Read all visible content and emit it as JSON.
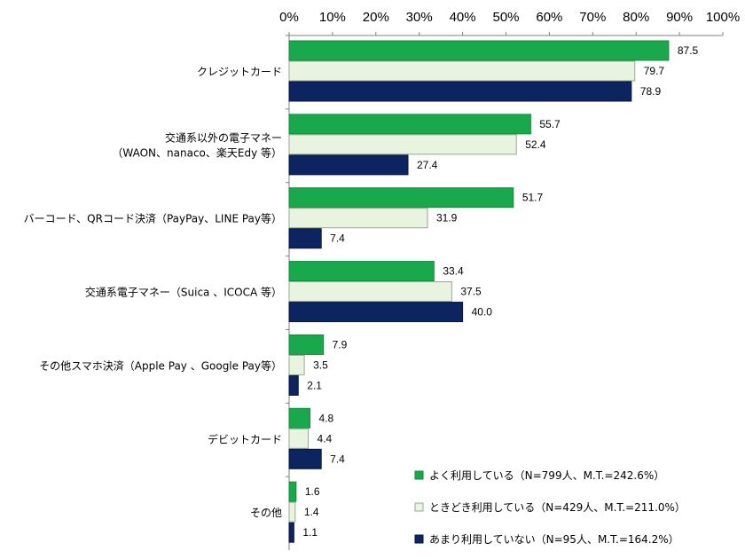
{
  "chart_data": {
    "type": "bar",
    "orientation": "horizontal",
    "xlim": [
      0,
      100
    ],
    "x_ticks": [
      "0%",
      "10%",
      "20%",
      "30%",
      "40%",
      "50%",
      "60%",
      "70%",
      "80%",
      "90%",
      "100%"
    ],
    "tick_position": "top",
    "grid": false,
    "legend_position": "bottom-right",
    "categories": [
      [
        "クレジットカード"
      ],
      [
        "交通系以外の電子マネー",
        "（WAON、nanaco、楽天Edy 等）"
      ],
      [
        "バーコード、QRコード決済（PayPay、LINE Pay等）"
      ],
      [
        "交通系電子マネー（Suica 、ICOCA 等）"
      ],
      [
        "その他スマホ決済（Apple Pay 、Google Pay等）"
      ],
      [
        "デビットカード"
      ],
      [
        "その他"
      ]
    ],
    "series": [
      {
        "name": "よく利用している（N=799人、M.T.=242.6%）",
        "color": "#1aa84d",
        "values": [
          87.5,
          55.7,
          51.7,
          33.4,
          7.9,
          4.8,
          1.6
        ],
        "labels": [
          "87.5",
          "55.7",
          "51.7",
          "33.4",
          "7.9",
          "4.8",
          "1.6"
        ]
      },
      {
        "name": "ときどき利用している（N=429人、M.T.=211.0%）",
        "color": "#e8f3e0",
        "values": [
          79.7,
          52.4,
          31.9,
          37.5,
          3.5,
          4.4,
          1.4
        ],
        "labels": [
          "79.7",
          "52.4",
          "31.9",
          "37.5",
          "3.5",
          "4.4",
          "1.4"
        ]
      },
      {
        "name": "あまり利用していない（N=95人、M.T.=164.2%）",
        "color": "#0c2460",
        "values": [
          78.9,
          27.4,
          7.4,
          40.0,
          2.1,
          7.4,
          1.1
        ],
        "labels": [
          "78.9",
          "27.4",
          "7.4",
          "40.0",
          "2.1",
          "7.4",
          "1.1"
        ]
      }
    ]
  }
}
